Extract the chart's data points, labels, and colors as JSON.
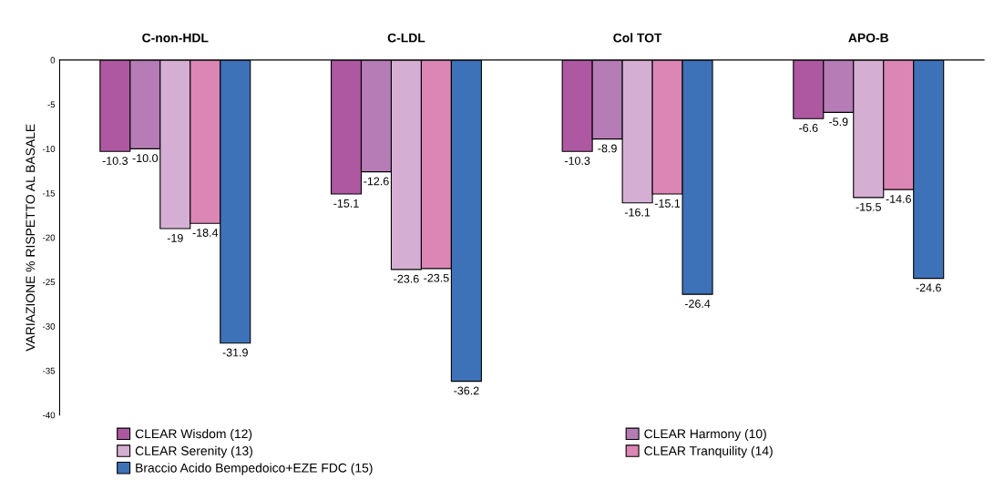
{
  "chart_data": {
    "type": "bar",
    "ylabel": "VARIAZIONE % RISPETTO AL BASALE",
    "categories": [
      "C-non-HDL",
      "C-LDL",
      "Col TOT",
      "APO-B"
    ],
    "series": [
      {
        "name": "CLEAR Wisdom (12)",
        "color": "#ae58a1",
        "values": [
          -10.3,
          -15.1,
          -10.3,
          -6.6
        ],
        "value_labels": [
          "-10.3",
          "-15.1",
          "-10.3",
          "-6.6"
        ]
      },
      {
        "name": "CLEAR Harmony (10)",
        "color": "#b57cb5",
        "values": [
          -10.0,
          -12.6,
          -8.9,
          -5.9
        ],
        "value_labels": [
          "-10.0",
          "-12.6",
          "-8.9",
          "-5.9"
        ]
      },
      {
        "name": "CLEAR Serenity (13)",
        "color": "#d5afd3",
        "values": [
          -19,
          -23.6,
          -16.1,
          -15.5
        ],
        "value_labels": [
          "-19",
          "-23.6",
          "-16.1",
          "-15.5"
        ]
      },
      {
        "name": "CLEAR Tranquility (14)",
        "color": "#dc86b5",
        "values": [
          -18.4,
          -23.5,
          -15.1,
          -14.6
        ],
        "value_labels": [
          "-18.4",
          "-23.5",
          "-15.1",
          "-14.6"
        ]
      },
      {
        "name": "Braccio Acido Bempedoico+EZE FDC (15)",
        "color": "#3e72b8",
        "values": [
          -31.9,
          -36.2,
          -26.4,
          -24.6
        ],
        "value_labels": [
          "-31.9",
          "-36.2",
          "-26.4",
          "-24.6"
        ]
      }
    ],
    "ylim": [
      -40,
      0
    ],
    "yticks": [
      -40,
      -35,
      -30,
      -25,
      -20,
      -15,
      -10,
      -5,
      0
    ],
    "grid": false,
    "legend": "bottom"
  }
}
